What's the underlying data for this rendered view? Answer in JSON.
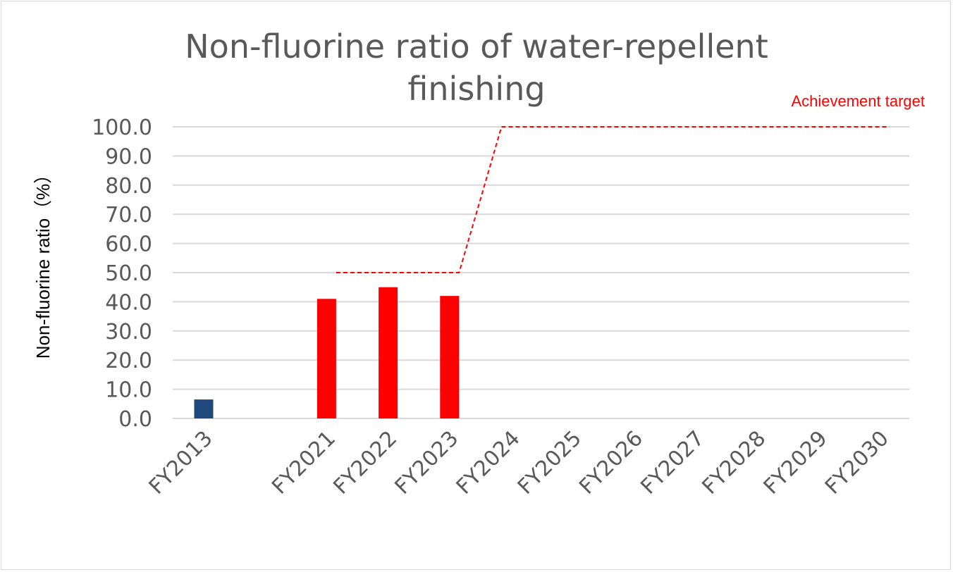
{
  "chart_data": {
    "type": "bar",
    "title_lines": [
      "Non-fluorine ratio of water-repellent",
      "finishing"
    ],
    "ylabel": "Non-fluorine ratio（%）",
    "ylim": [
      0,
      100
    ],
    "yticks": [
      "0.0",
      "10.0",
      "20.0",
      "30.0",
      "40.0",
      "50.0",
      "60.0",
      "70.0",
      "80.0",
      "90.0",
      "100.0"
    ],
    "grid": true,
    "categories": [
      "FY2013",
      "",
      "FY2021",
      "FY2022",
      "FY2023",
      "FY2024",
      "FY2025",
      "FY2026",
      "FY2027",
      "FY2028",
      "FY2029",
      "FY2030"
    ],
    "series": [
      {
        "values": [
          6.5,
          null,
          41,
          45,
          42,
          null,
          null,
          null,
          null,
          null,
          null,
          null
        ],
        "colors": [
          "#1f497d",
          null,
          "#ff0000",
          "#ff0000",
          "#ff0000",
          null,
          null,
          null,
          null,
          null,
          null,
          null
        ]
      }
    ],
    "target_line": {
      "label": "Achievement target",
      "color": "#ff0000",
      "style": "dashed",
      "values": [
        null,
        null,
        50,
        50,
        50,
        100,
        100,
        100,
        100,
        100,
        100,
        100
      ]
    }
  }
}
